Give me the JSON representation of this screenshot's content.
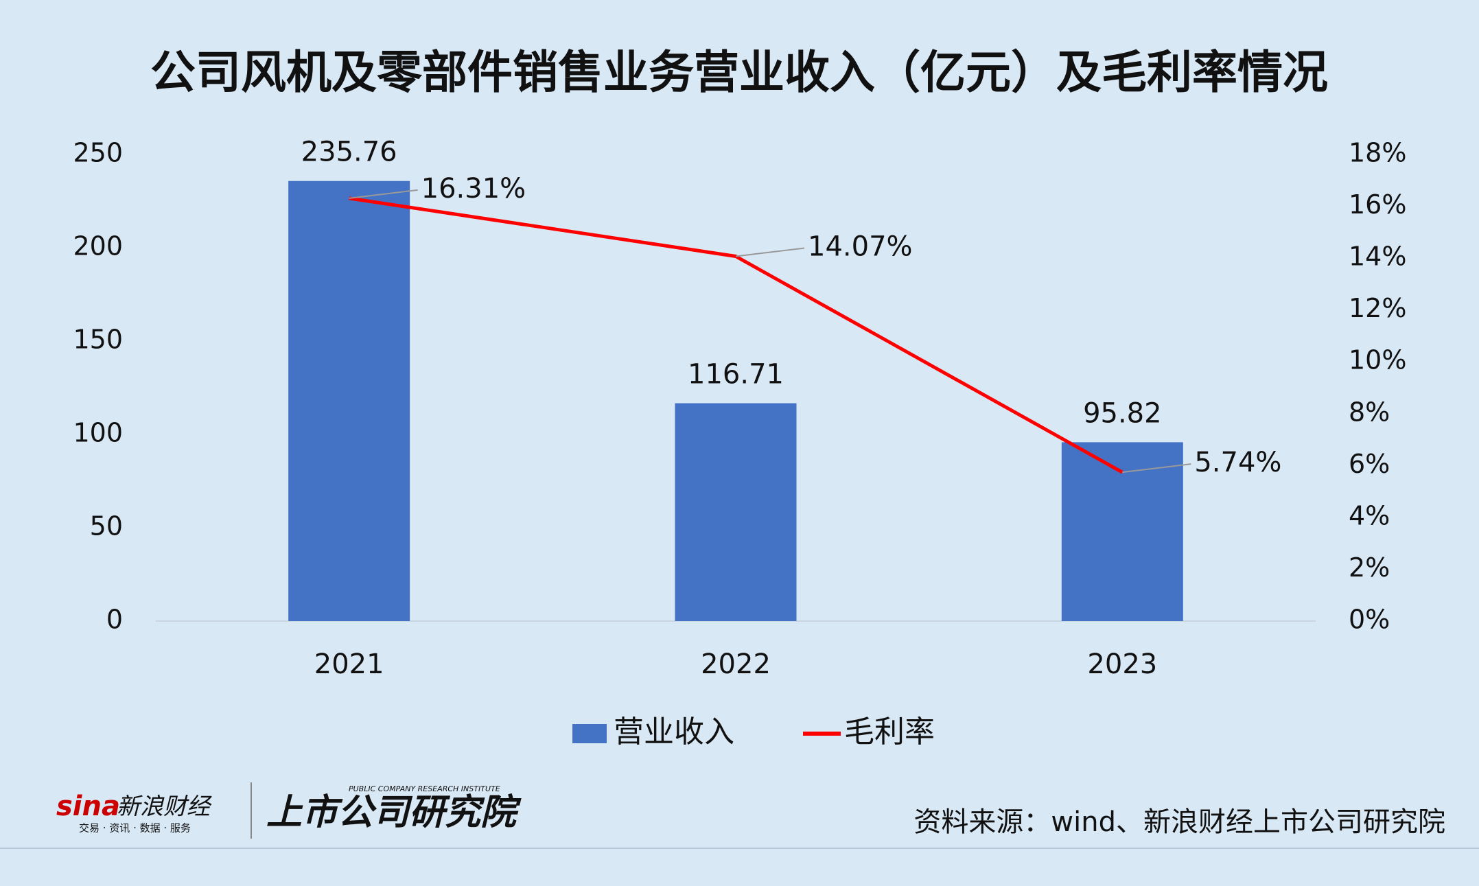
{
  "chart_data": {
    "type": "bar",
    "title": "公司风机及零部件销售业务营业收入（亿元）及毛利率情况",
    "categories": [
      "2021",
      "2022",
      "2023"
    ],
    "series": [
      {
        "name": "营业收入",
        "type": "bar",
        "color": "#4472c4",
        "values": [
          235.76,
          116.71,
          95.82
        ]
      },
      {
        "name": "毛利率",
        "type": "line",
        "axis": "y2",
        "color": "#ff0000",
        "values": [
          16.31,
          14.07,
          5.74
        ],
        "value_labels": [
          "16.31%",
          "14.07%",
          "5.74%"
        ]
      }
    ],
    "ylim": [
      0,
      250
    ],
    "yticks": [
      0,
      50,
      100,
      150,
      200,
      250
    ],
    "y2lim": [
      0,
      18
    ],
    "y2ticks": [
      {
        "value": 0,
        "label": "0%"
      },
      {
        "value": 2,
        "label": "2%"
      },
      {
        "value": 4,
        "label": "4%"
      },
      {
        "value": 6,
        "label": "6%"
      },
      {
        "value": 8,
        "label": "8%"
      },
      {
        "value": 10,
        "label": "10%"
      },
      {
        "value": 12,
        "label": "12%"
      },
      {
        "value": 14,
        "label": "14%"
      },
      {
        "value": 16,
        "label": "16%"
      },
      {
        "value": 18,
        "label": "18%"
      }
    ],
    "legend": "bottom"
  },
  "footer": {
    "source": "资料来源：wind、新浪财经上市公司研究院",
    "logo_sina": "sina",
    "logo_name": "新浪财经",
    "logo_slogan": "交易 · 资讯 · 数据 · 服务",
    "institute": "上市公司研究院",
    "institute_en": "PUBLIC COMPANY RESEARCH INSTITUTE"
  }
}
